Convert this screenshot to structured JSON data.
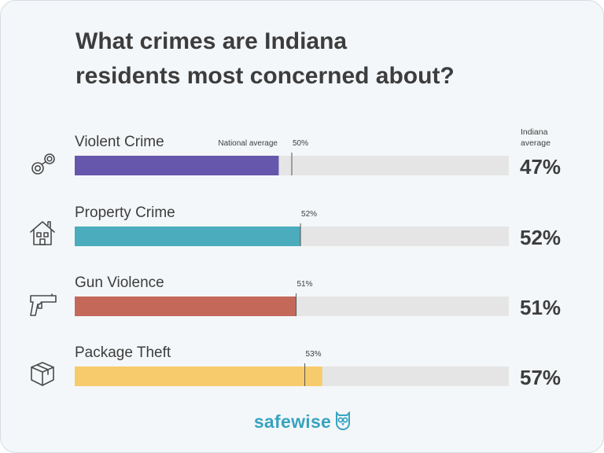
{
  "title": {
    "line1": "What crimes are Indiana",
    "line2": "residents most concerned about?"
  },
  "header": {
    "indiana_line1": "Indiana",
    "indiana_line2": "average"
  },
  "brand": {
    "safe": "safe",
    "wise": "wise",
    "safe_color": "#38a3c0",
    "wise_color": "#38a3c0"
  },
  "chart_data": {
    "type": "bar",
    "orientation": "horizontal",
    "title": "What crimes are Indiana residents most concerned about?",
    "categories": [
      "Violent Crime",
      "Property Crime",
      "Gun Violence",
      "Package Theft"
    ],
    "series": [
      {
        "name": "Indiana average",
        "values": [
          47,
          52,
          51,
          57
        ],
        "value_labels": [
          "47%",
          "52%",
          "51%",
          "57%"
        ]
      },
      {
        "name": "National average",
        "values": [
          50,
          52,
          51,
          53
        ],
        "value_labels": [
          "50%",
          "52%",
          "51%",
          "53%"
        ]
      }
    ],
    "national_prefix": [
      "National average",
      "",
      "",
      ""
    ],
    "colors": [
      "#6757ac",
      "#4aacbd",
      "#c4695a",
      "#f7cb6b"
    ],
    "track_color": "#e5e5e5",
    "xlim": [
      0,
      100
    ],
    "icons": [
      "handcuffs-icon",
      "house-icon",
      "gun-icon",
      "package-icon"
    ],
    "grid": false
  }
}
